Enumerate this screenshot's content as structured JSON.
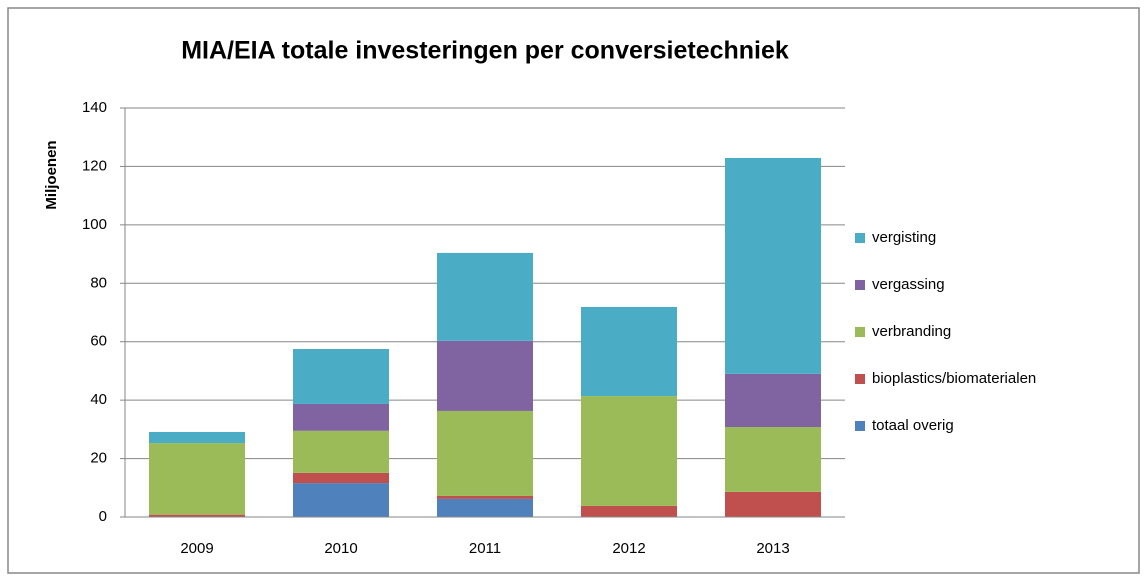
{
  "chart_data": {
    "type": "stacked_bar",
    "title": "MIA/EIA totale investeringen per conversietechniek",
    "y_label": "Miljoenen",
    "categories": [
      "2009",
      "2010",
      "2011",
      "2012",
      "2013"
    ],
    "series": [
      {
        "name": "totaal overig",
        "color": "#4f81bd",
        "values": [
          0,
          11.6,
          6.2,
          0,
          0
        ]
      },
      {
        "name": "bioplastics/biomaterialen",
        "color": "#c0504d",
        "values": [
          0.8,
          3.5,
          1.0,
          3.8,
          8.6
        ]
      },
      {
        "name": "verbranding",
        "color": "#9bbb59",
        "values": [
          24.5,
          14.4,
          29.1,
          37.6,
          22.2
        ]
      },
      {
        "name": "vergassing",
        "color": "#8064a2",
        "values": [
          0,
          9.2,
          24.0,
          0,
          18.2
        ]
      },
      {
        "name": "vergisting",
        "color": "#4bacc6",
        "values": [
          3.8,
          18.8,
          30.1,
          30.5,
          73.9
        ]
      }
    ],
    "ylim": [
      0,
      140
    ],
    "yticks": [
      0,
      20,
      40,
      60,
      80,
      100,
      120,
      140
    ],
    "grid": true,
    "legend": "right"
  }
}
